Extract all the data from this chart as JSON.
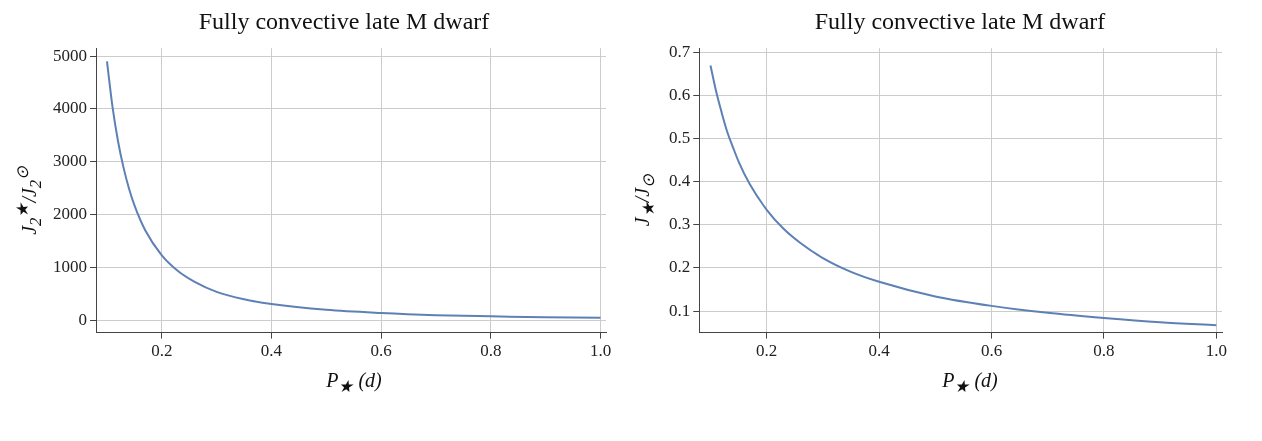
{
  "chart_data": [
    {
      "type": "line",
      "title": "Fully convective late M dwarf",
      "xlabel": "P$_{★}$ (d)",
      "ylabel": "J$_{2}$$^{★}$/J$_{2}$$^{⊙}$",
      "x": [
        0.1,
        0.11,
        0.12,
        0.13,
        0.14,
        0.15,
        0.17,
        0.2,
        0.23,
        0.26,
        0.3,
        0.35,
        0.4,
        0.5,
        0.6,
        0.7,
        0.8,
        0.9,
        1.0
      ],
      "series": [
        {
          "color": "#5e81b5",
          "values": [
            4900,
            4050,
            3400,
            2900,
            2500,
            2180,
            1700,
            1230,
            930,
            730,
            540,
            400,
            310,
            200,
            140,
            100,
            77,
            60,
            49
          ]
        }
      ],
      "xlim": [
        0.08,
        1.01
      ],
      "ylim": [
        -230,
        5150
      ],
      "xticks": [
        0.2,
        0.4,
        0.6,
        0.8,
        {
          "value": 1,
          "label": "1.0"
        }
      ],
      "yticks": [
        0,
        1000,
        2000,
        3000,
        4000,
        5000
      ],
      "grid": true
    },
    {
      "type": "line",
      "title": "Fully convective late M dwarf",
      "xlabel": "P$_{★}$ (d)",
      "ylabel": "J$_{★}$/J$_{⊙}$",
      "x": [
        0.1,
        0.11,
        0.12,
        0.13,
        0.14,
        0.15,
        0.17,
        0.2,
        0.23,
        0.26,
        0.3,
        0.35,
        0.4,
        0.5,
        0.6,
        0.7,
        0.8,
        0.9,
        1.0
      ],
      "series": [
        {
          "color": "#5e81b5",
          "values": [
            0.67,
            0.61,
            0.56,
            0.515,
            0.48,
            0.447,
            0.394,
            0.335,
            0.291,
            0.258,
            0.223,
            0.191,
            0.168,
            0.134,
            0.112,
            0.096,
            0.084,
            0.074,
            0.067
          ]
        }
      ],
      "xlim": [
        0.08,
        1.01
      ],
      "ylim": [
        0.05,
        0.71
      ],
      "xticks": [
        0.2,
        0.4,
        0.6,
        0.8,
        {
          "value": 1,
          "label": "1.0"
        }
      ],
      "yticks": [
        0.1,
        0.2,
        0.3,
        0.4,
        0.5,
        0.6,
        0.7
      ],
      "grid": true
    }
  ]
}
